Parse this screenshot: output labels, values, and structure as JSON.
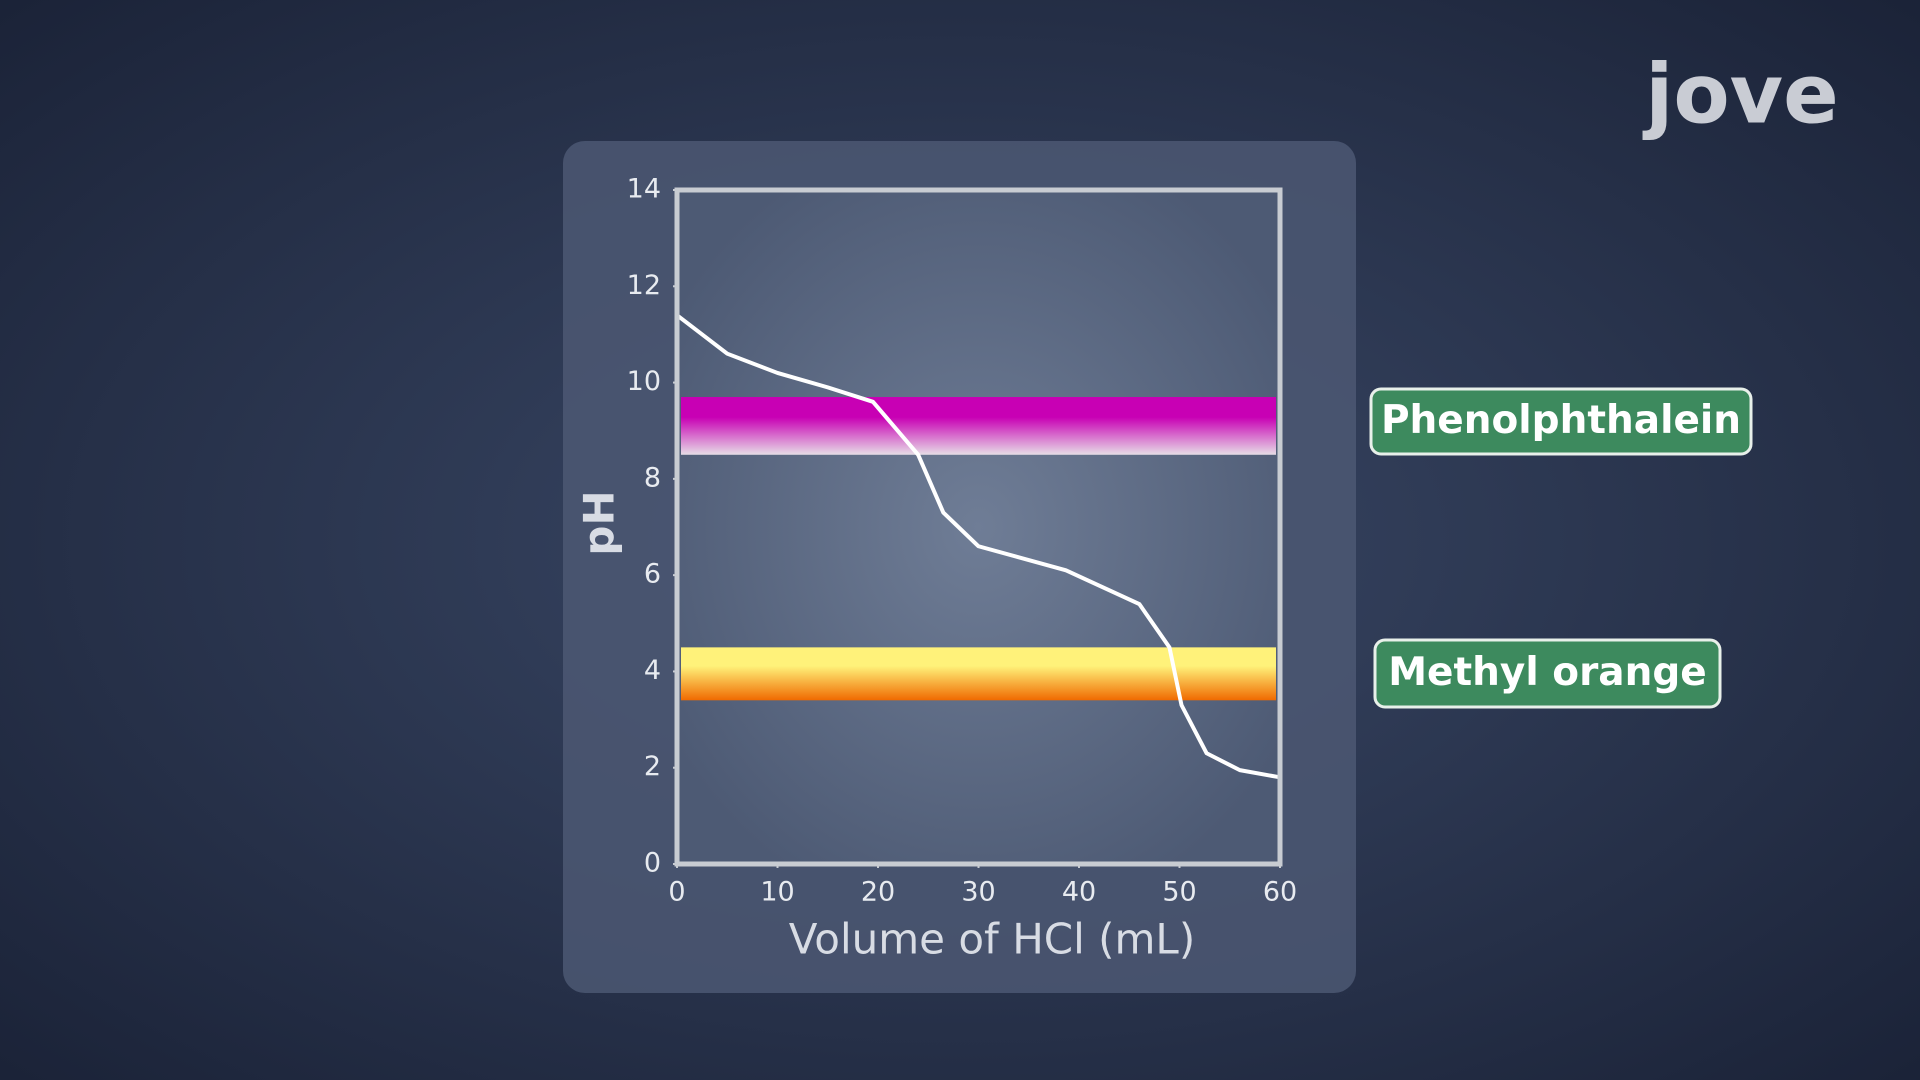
{
  "logo": "jove",
  "chart_data": {
    "type": "line",
    "x_label": "Volume of HCl (mL)",
    "y_label": "pH",
    "x": [
      0,
      5,
      10,
      15,
      19.5,
      24,
      26.5,
      30,
      38.7,
      46,
      49,
      50.2,
      52.7,
      56,
      60
    ],
    "values": [
      11.4,
      10.6,
      10.2,
      9.9,
      9.6,
      8.5,
      7.3,
      6.6,
      6.1,
      5.4,
      4.5,
      3.3,
      2.3,
      1.95,
      1.8
    ],
    "color": "#ffffff",
    "xlim": [
      0,
      60
    ],
    "xticks": [
      0,
      10,
      20,
      30,
      40,
      50,
      60
    ],
    "ylim": [
      0,
      14
    ],
    "yticks": [
      0,
      2,
      4,
      6,
      8,
      10,
      12,
      14
    ],
    "bands": [
      {
        "name": "Phenolphthalein",
        "range": [
          8.5,
          9.7
        ],
        "colors": [
          "#c800b4",
          "#e6dde6"
        ]
      },
      {
        "name": "Methyl orange",
        "range": [
          3.4,
          4.5
        ],
        "colors": [
          "#fff27a",
          "#f06a00"
        ]
      }
    ]
  }
}
